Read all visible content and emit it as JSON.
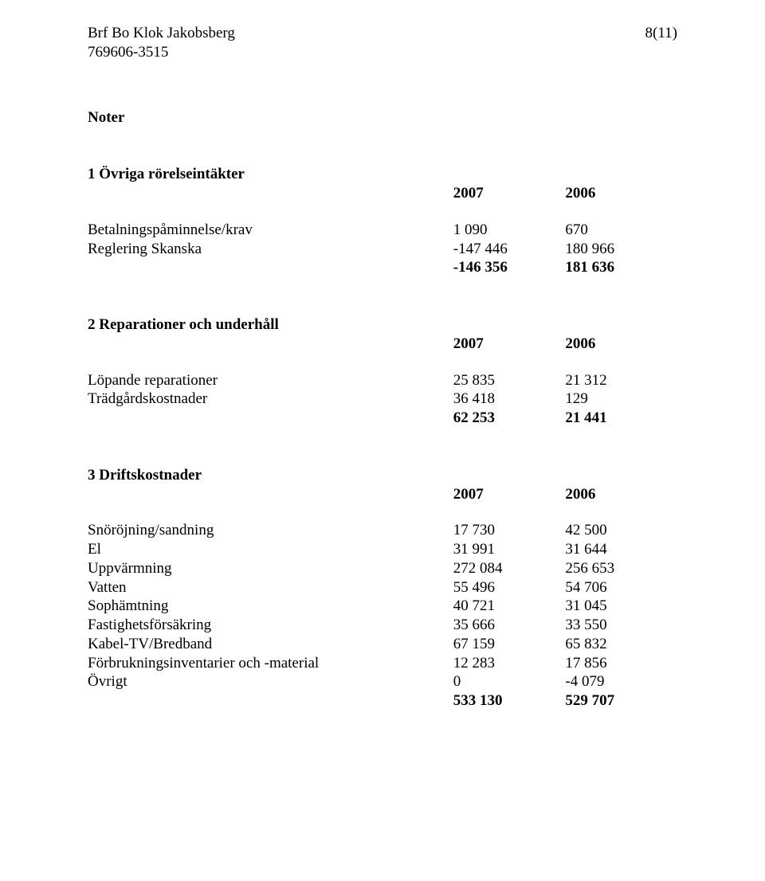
{
  "header": {
    "line1": "Brf Bo Klok Jakobsberg",
    "line2": "769606-3515",
    "page": "8(11)"
  },
  "noter_title": "Noter",
  "sec1": {
    "title": "1 Övriga rörelseintäkter",
    "year_a": "2007",
    "year_b": "2006",
    "rows": [
      {
        "label": "Betalningspåminnelse/krav",
        "a": "1 090",
        "b": "670"
      },
      {
        "label": "Reglering Skanska",
        "a": "-147 446",
        "b": "180 966"
      }
    ],
    "total": {
      "a": "-146 356",
      "b": "181 636"
    }
  },
  "sec2": {
    "title": "2 Reparationer och underhåll",
    "year_a": "2007",
    "year_b": "2006",
    "rows": [
      {
        "label": "Löpande reparationer",
        "a": "25 835",
        "b": "21 312"
      },
      {
        "label": "Trädgårdskostnader",
        "a": "36 418",
        "b": "129"
      }
    ],
    "total": {
      "a": "62 253",
      "b": "21 441"
    }
  },
  "sec3": {
    "title": "3 Driftskostnader",
    "year_a": "2007",
    "year_b": "2006",
    "rows": [
      {
        "label": "Snöröjning/sandning",
        "a": "17 730",
        "b": "42 500"
      },
      {
        "label": "El",
        "a": "31 991",
        "b": "31 644"
      },
      {
        "label": "Uppvärmning",
        "a": "272 084",
        "b": "256 653"
      },
      {
        "label": "Vatten",
        "a": "55 496",
        "b": "54 706"
      },
      {
        "label": "Sophämtning",
        "a": "40 721",
        "b": "31 045"
      },
      {
        "label": "Fastighetsförsäkring",
        "a": "35 666",
        "b": "33 550"
      },
      {
        "label": "Kabel-TV/Bredband",
        "a": "67 159",
        "b": "65 832"
      },
      {
        "label": "Förbrukningsinventarier och -material",
        "a": "12 283",
        "b": "17 856"
      },
      {
        "label": "Övrigt",
        "a": "0",
        "b": "-4 079"
      }
    ],
    "total": {
      "a": "533 130",
      "b": "529 707"
    }
  }
}
